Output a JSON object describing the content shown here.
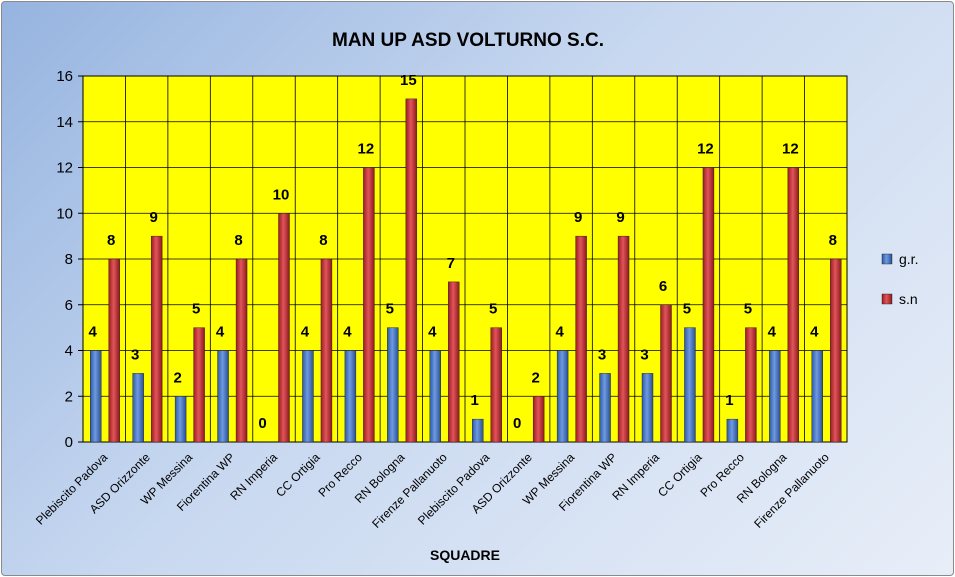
{
  "chart_data": {
    "type": "bar",
    "title": "MAN UP ASD VOLTURNO S.C.",
    "xlabel": "SQUADRE",
    "ylabel": "",
    "ylim": [
      0,
      16
    ],
    "ytick_step": 2,
    "grid": true,
    "legend_position": "right",
    "plot_background": "#ffff00",
    "categories": [
      "Plebiscito Padova",
      "ASD Orizzonte",
      "WP Messina",
      "Fiorentina WP",
      "RN Imperia",
      "CC Ortigia",
      "Pro Recco",
      "RN Bologna",
      "Firenze Pallanuoto",
      "Plebiscito Padova",
      "ASD Orizzonte",
      "WP Messina",
      "Fiorentina WP",
      "RN Imperia",
      "CC Ortigia",
      "Pro Recco",
      "RN Bologna",
      "Firenze Pallanuoto"
    ],
    "series": [
      {
        "name": "g.r.",
        "color": "#3f6fbf",
        "values": [
          4,
          3,
          2,
          4,
          0,
          4,
          4,
          5,
          4,
          1,
          0,
          4,
          3,
          3,
          5,
          1,
          4,
          4
        ]
      },
      {
        "name": "s.n",
        "color": "#c0282d",
        "values": [
          8,
          9,
          5,
          8,
          10,
          8,
          12,
          15,
          7,
          5,
          2,
          9,
          9,
          6,
          12,
          5,
          12,
          8
        ]
      }
    ]
  }
}
